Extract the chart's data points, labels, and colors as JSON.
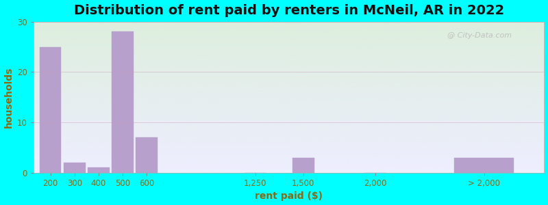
{
  "title": "Distribution of rent paid by renters in McNeil, AR in 2022",
  "xlabel": "rent paid ($)",
  "ylabel": "households",
  "background_color": "#00FFFF",
  "plot_bg_gradient_top": "#ddeedd",
  "plot_bg_gradient_bottom": "#eeeeff",
  "bar_color": "#b8a0cc",
  "bar_edgecolor": "#b8a0cc",
  "categories": [
    "200",
    "300",
    "400",
    "500",
    "600",
    "1,250",
    "1,500",
    "2,000",
    "> 2,000"
  ],
  "values": [
    25,
    2,
    1,
    28,
    7,
    0,
    3,
    0,
    3
  ],
  "bar_widths": [
    0.9,
    0.9,
    0.9,
    0.9,
    0.9,
    0.9,
    0.9,
    0.9,
    2.5
  ],
  "x_positions": [
    0.5,
    1.5,
    2.5,
    3.5,
    4.5,
    9.0,
    11.0,
    14.0,
    18.5
  ],
  "tick_positions": [
    0.5,
    1.5,
    2.5,
    3.5,
    4.5,
    9.0,
    11.0,
    14.0,
    18.5
  ],
  "xlim": [
    -0.2,
    21.0
  ],
  "ylim": [
    0,
    30
  ],
  "yticks": [
    0,
    10,
    20,
    30
  ],
  "title_fontsize": 14,
  "axis_label_fontsize": 10,
  "tick_fontsize": 8.5,
  "tick_color": "#8B6914",
  "label_color": "#8B6914",
  "grid_color": "#cc99bb",
  "watermark_text": "@ City-Data.com"
}
